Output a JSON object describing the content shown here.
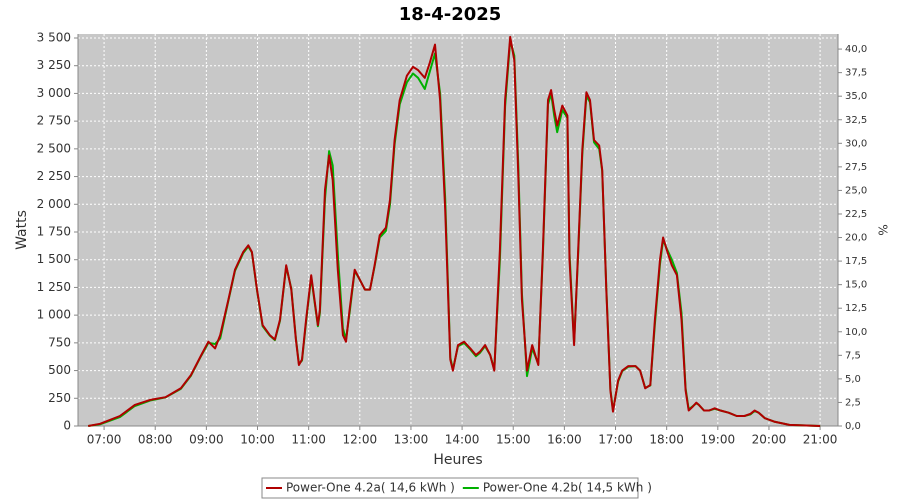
{
  "chart_data": {
    "type": "line",
    "title": "18-4-2025",
    "x_label": "Heures",
    "y_label": "Watts",
    "y2_label": "%",
    "x": [
      6.69,
      6.92,
      7.31,
      7.6,
      7.9,
      8.2,
      8.5,
      8.7,
      8.9,
      9.04,
      9.17,
      9.27,
      9.43,
      9.56,
      9.72,
      9.82,
      9.89,
      9.99,
      10.1,
      10.24,
      10.34,
      10.44,
      10.56,
      10.66,
      10.75,
      10.81,
      10.87,
      10.95,
      11.05,
      11.18,
      11.22,
      11.32,
      11.4,
      11.47,
      11.57,
      11.67,
      11.73,
      11.8,
      11.9,
      12.0,
      12.1,
      12.2,
      12.29,
      12.39,
      12.51,
      12.59,
      12.68,
      12.78,
      12.92,
      13.04,
      13.14,
      13.27,
      13.37,
      13.47,
      13.57,
      13.67,
      13.77,
      13.82,
      13.92,
      14.04,
      14.16,
      14.27,
      14.35,
      14.45,
      14.55,
      14.63,
      14.74,
      14.84,
      14.94,
      15.02,
      15.1,
      15.17,
      15.27,
      15.37,
      15.49,
      15.58,
      15.68,
      15.74,
      15.8,
      15.86,
      15.96,
      16.06,
      16.1,
      16.19,
      16.27,
      16.35,
      16.43,
      16.5,
      16.58,
      16.68,
      16.74,
      16.82,
      16.9,
      16.95,
      17.05,
      17.13,
      17.25,
      17.39,
      17.48,
      17.58,
      17.68,
      17.77,
      17.87,
      17.93,
      18.0,
      18.1,
      18.2,
      18.29,
      18.37,
      18.43,
      18.5,
      18.58,
      18.63,
      18.73,
      18.83,
      18.94,
      19.05,
      19.21,
      19.37,
      19.52,
      19.64,
      19.72,
      19.8,
      19.92,
      20.1,
      20.4,
      21.0
    ],
    "series": [
      {
        "name": "Power-One 4.2a( 14,6 kWh )",
        "color": "#b00000",
        "values": [
          0,
          20,
          90,
          190,
          235,
          260,
          340,
          460,
          640,
          760,
          700,
          820,
          1140,
          1410,
          1570,
          1630,
          1570,
          1230,
          910,
          820,
          780,
          960,
          1450,
          1230,
          780,
          550,
          600,
          960,
          1360,
          910,
          1050,
          2130,
          2440,
          2220,
          1410,
          820,
          760,
          1050,
          1410,
          1320,
          1230,
          1230,
          1450,
          1720,
          1790,
          2040,
          2580,
          2940,
          3160,
          3240,
          3210,
          3140,
          3280,
          3440,
          2940,
          1950,
          600,
          500,
          730,
          760,
          700,
          640,
          670,
          730,
          640,
          500,
          1590,
          2940,
          3510,
          3300,
          2260,
          1140,
          500,
          730,
          550,
          1590,
          2940,
          3030,
          2850,
          2710,
          2890,
          2800,
          1500,
          730,
          1590,
          2490,
          3010,
          2940,
          2580,
          2530,
          2310,
          1230,
          320,
          130,
          410,
          500,
          540,
          540,
          500,
          340,
          370,
          960,
          1500,
          1700,
          1590,
          1450,
          1360,
          960,
          320,
          140,
          170,
          210,
          190,
          140,
          140,
          160,
          140,
          120,
          90,
          90,
          110,
          140,
          120,
          70,
          40,
          10,
          0
        ]
      },
      {
        "name": "Power-One 4.2b( 14,5 kWh )",
        "color": "#00b000",
        "values": [
          0,
          15,
          80,
          180,
          230,
          258,
          335,
          455,
          635,
          750,
          740,
          790,
          1130,
          1400,
          1560,
          1620,
          1565,
          1225,
          900,
          815,
          775,
          950,
          1440,
          1240,
          790,
          560,
          590,
          940,
          1340,
          900,
          1020,
          2050,
          2480,
          2350,
          1550,
          880,
          780,
          1020,
          1400,
          1320,
          1230,
          1230,
          1440,
          1700,
          1760,
          2000,
          2540,
          2900,
          3100,
          3180,
          3140,
          3040,
          3200,
          3360,
          3000,
          2050,
          620,
          510,
          720,
          750,
          690,
          630,
          660,
          720,
          640,
          510,
          1500,
          2880,
          3480,
          3340,
          2350,
          1200,
          450,
          700,
          560,
          1550,
          2900,
          3000,
          2800,
          2650,
          2850,
          2780,
          1560,
          750,
          1560,
          2450,
          2980,
          2920,
          2560,
          2500,
          2300,
          1250,
          330,
          140,
          400,
          495,
          535,
          540,
          500,
          345,
          365,
          920,
          1460,
          1680,
          1600,
          1500,
          1380,
          1020,
          340,
          150,
          175,
          205,
          190,
          140,
          140,
          155,
          140,
          120,
          90,
          90,
          105,
          135,
          120,
          70,
          40,
          10,
          0
        ]
      }
    ],
    "xlim": [
      6.49,
      21.35
    ],
    "xticks": [
      {
        "value": 7,
        "label": "07:00"
      },
      {
        "value": 8,
        "label": "08:00"
      },
      {
        "value": 9,
        "label": "09:00"
      },
      {
        "value": 10,
        "label": "10:00"
      },
      {
        "value": 11,
        "label": "11:00"
      },
      {
        "value": 12,
        "label": "12:00"
      },
      {
        "value": 13,
        "label": "13:00"
      },
      {
        "value": 14,
        "label": "14:00"
      },
      {
        "value": 15,
        "label": "15:00"
      },
      {
        "value": 16,
        "label": "16:00"
      },
      {
        "value": 17,
        "label": "17:00"
      },
      {
        "value": 18,
        "label": "18:00"
      },
      {
        "value": 19,
        "label": "19:00"
      },
      {
        "value": 20,
        "label": "20:00"
      },
      {
        "value": 21,
        "label": "21:00"
      }
    ],
    "ylim": [
      0,
      3536
    ],
    "yticks": [
      0,
      250,
      500,
      750,
      {
        "value": 1000,
        "label": "1 000"
      },
      {
        "value": 1250,
        "label": "1 250"
      },
      {
        "value": 1500,
        "label": "1 500"
      },
      {
        "value": 1750,
        "label": "1 750"
      },
      {
        "value": 2000,
        "label": "2 000"
      },
      {
        "value": 2250,
        "label": "2 250"
      },
      {
        "value": 2500,
        "label": "2 500"
      },
      {
        "value": 2750,
        "label": "2 750"
      },
      {
        "value": 3000,
        "label": "3 000"
      },
      {
        "value": 3250,
        "label": "3 250"
      },
      {
        "value": 3500,
        "label": "3 500"
      }
    ],
    "y2lim": [
      0,
      41.6
    ],
    "y2ticks": [
      {
        "value": 0,
        "label": "0,0"
      },
      {
        "value": 2.5,
        "label": "2,5"
      },
      {
        "value": 5,
        "label": "5,0"
      },
      {
        "value": 7.5,
        "label": "7,5"
      },
      {
        "value": 10,
        "label": "10,0"
      },
      {
        "value": 12.5,
        "label": "12,5"
      },
      {
        "value": 15,
        "label": "15,0"
      },
      {
        "value": 17.5,
        "label": "17,5"
      },
      {
        "value": 20,
        "label": "20,0"
      },
      {
        "value": 22.5,
        "label": "22,5"
      },
      {
        "value": 25,
        "label": "25,0"
      },
      {
        "value": 27.5,
        "label": "27,5"
      },
      {
        "value": 30,
        "label": "30,0"
      },
      {
        "value": 32.5,
        "label": "32,5"
      },
      {
        "value": 35,
        "label": "35,0"
      },
      {
        "value": 37.5,
        "label": "37,5"
      },
      {
        "value": 40,
        "label": "40,0"
      }
    ],
    "grid": true
  }
}
